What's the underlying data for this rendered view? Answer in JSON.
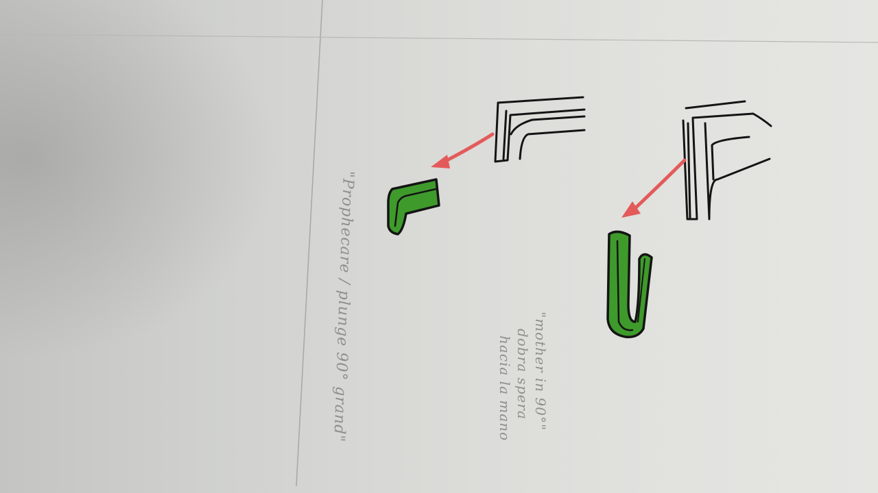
{
  "notes": {
    "left": "\"Prophecare / plunge 90° grand\"",
    "right_line1": "\"mother in 90°\"",
    "right_line2": "dobra spera",
    "right_line3": "hacia la mano"
  },
  "colors": {
    "ink": "#141414",
    "green_fill": "#3f9a2c",
    "arrow": "#e35a5a",
    "pencil": "#a9aaa7"
  }
}
